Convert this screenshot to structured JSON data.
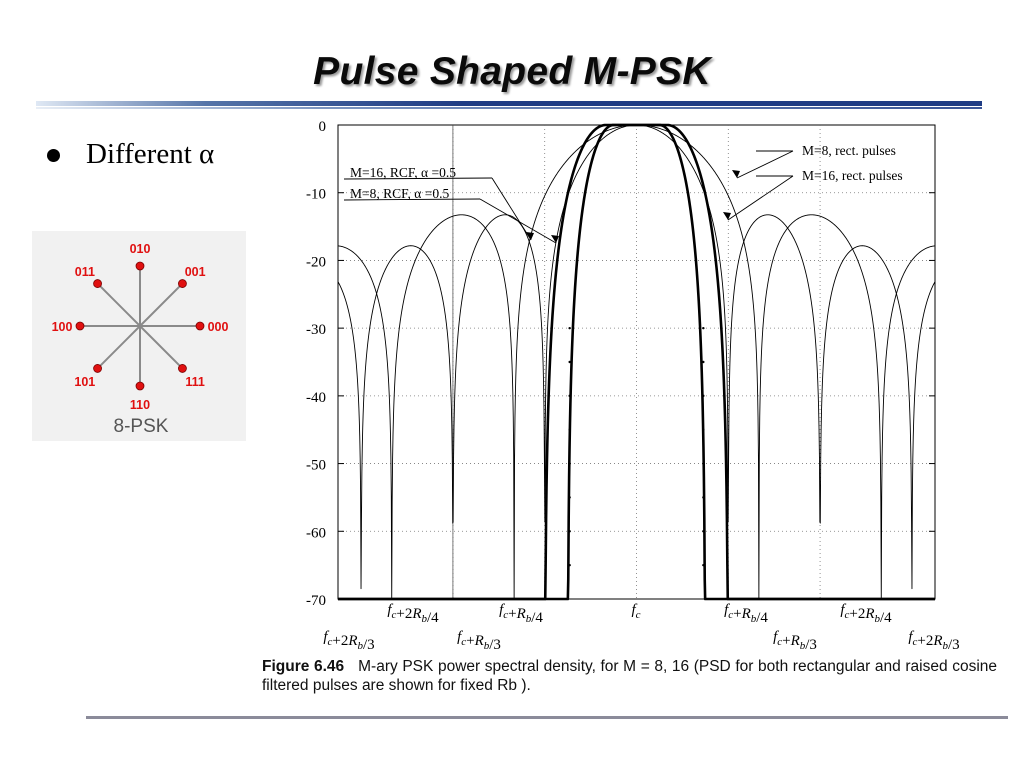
{
  "slide": {
    "title": "Pulse Shaped M-PSK",
    "bullet": "Different α"
  },
  "constellation": {
    "caption": "8-PSK",
    "points": [
      {
        "label": "010",
        "angle_deg": 90
      },
      {
        "label": "001",
        "angle_deg": 45
      },
      {
        "label": "000",
        "angle_deg": 0
      },
      {
        "label": "111",
        "angle_deg": -45
      },
      {
        "label": "110",
        "angle_deg": -90
      },
      {
        "label": "101",
        "angle_deg": -135
      },
      {
        "label": "100",
        "angle_deg": 180
      },
      {
        "label": "011",
        "angle_deg": 135
      }
    ],
    "point_color": "#e01010",
    "label_color": "#e01010",
    "spoke_color": "#8a8a8a"
  },
  "figure": {
    "caption_number": "Figure 6.46",
    "caption_text": "M-ary PSK power spectral density, for M = 8, 16 (PSD for both rectangular and raised cosine filtered pulses are shown for fixed Rb )."
  },
  "chart_data": {
    "type": "line",
    "title": "",
    "xlabel": "",
    "ylabel": "",
    "ylim": [
      -70,
      0
    ],
    "xlim": [
      -0.813,
      0.813
    ],
    "x_unit": "Rb (offset from fc)",
    "grid": "dotted, vertical at fc±Rb/4, fc±2Rb/4; horizontal every 10 dB",
    "yticks": [
      0,
      -10,
      -20,
      -30,
      -40,
      -50,
      -60,
      -70
    ],
    "xticks_top": [
      "fc+2Rb/4",
      "fc+Rb/4",
      "fc",
      "fc+Rb/4",
      "fc+2Rb/4"
    ],
    "xticks_bottom": [
      "fc+2Rb/3",
      "fc+Rb/3",
      "fc+Rb/3",
      "fc+2Rb/3"
    ],
    "xticks_top_pos": [
      -0.5,
      -0.25,
      0,
      0.25,
      0.5
    ],
    "xticks_bottom_pos": [
      -0.667,
      -0.333,
      0.333,
      0.667
    ],
    "series": [
      {
        "name": "M=8, rect. pulses",
        "kind": "sinc2",
        "symbol_rate": 0.3333,
        "style": "thin"
      },
      {
        "name": "M=16, rect. pulses",
        "kind": "sinc2",
        "symbol_rate": 0.25,
        "style": "thin"
      },
      {
        "name": "M=8, RCF, α =0.5",
        "kind": "rcf",
        "symbol_rate": 0.3333,
        "alpha": 0.5,
        "style": "bold"
      },
      {
        "name": "M=16, RCF, α =0.5",
        "kind": "rcf",
        "symbol_rate": 0.25,
        "alpha": 0.5,
        "style": "bold"
      }
    ],
    "annotations": [
      {
        "text": "M=16, RCF,  α =0.5",
        "target_series": 3
      },
      {
        "text": "M=8, RCF, α =0.5",
        "target_series": 2
      },
      {
        "text": "M=8, rect. pulses",
        "target_series": 0
      },
      {
        "text": "M=16, rect. pulses",
        "target_series": 1
      }
    ]
  }
}
